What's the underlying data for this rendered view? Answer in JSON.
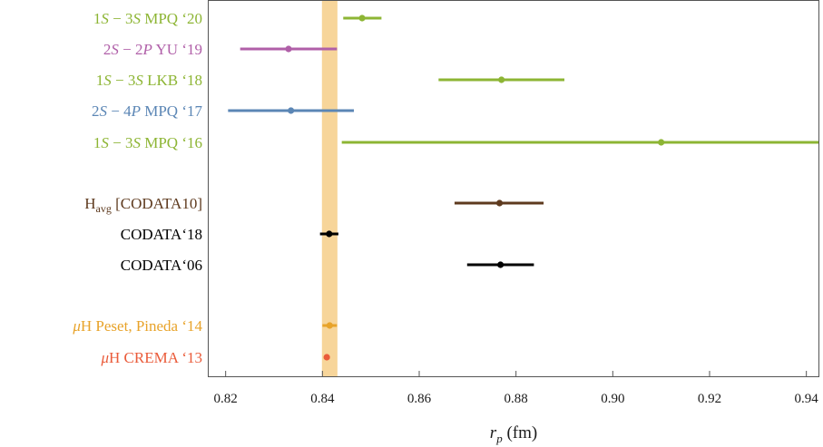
{
  "chart_data": {
    "type": "scatter",
    "title": "",
    "xlabel": "r_p (fm)",
    "xlim": [
      0.8165,
      0.9425
    ],
    "xticks": [
      "0.82",
      "0.84",
      "0.86",
      "0.88",
      "0.90",
      "0.92",
      "0.94"
    ],
    "tick_values": [
      0.82,
      0.84,
      0.86,
      0.88,
      0.9,
      0.92,
      0.94
    ],
    "band": {
      "low": 0.8399,
      "high": 0.8431,
      "color": "#f7d59a"
    },
    "points": [
      {
        "label": "1S − 3S MPQ ‘20",
        "value": 0.8482,
        "low": 0.8443,
        "high": 0.8522,
        "color": "#8db534"
      },
      {
        "label": "2S − 2P YU ‘19",
        "value": 0.833,
        "low": 0.823,
        "high": 0.843,
        "color": "#b05fa8"
      },
      {
        "label": "1S − 3S LKB ‘18",
        "value": 0.877,
        "low": 0.864,
        "high": 0.89,
        "color": "#8db534"
      },
      {
        "label": "2S − 4P MPQ ‘17",
        "value": 0.8335,
        "low": 0.8205,
        "high": 0.8465,
        "color": "#5b86b5"
      },
      {
        "label": "1S − 3S MPQ ‘16",
        "value": 0.91,
        "low": 0.844,
        "high": 0.9425,
        "color": "#8db534"
      },
      {
        "label": "H_avg [CODATA10]",
        "value": 0.8766,
        "low": 0.8673,
        "high": 0.8857,
        "color": "#5e3a1e"
      },
      {
        "label": "CODATA‘18",
        "value": 0.8414,
        "low": 0.8395,
        "high": 0.8433,
        "color": "#000000"
      },
      {
        "label": "CODATA‘06",
        "value": 0.8768,
        "low": 0.8699,
        "high": 0.8837,
        "color": "#000000"
      },
      {
        "label": "μH Peset, Pineda ‘14",
        "value": 0.8415,
        "low": 0.84,
        "high": 0.843,
        "color": "#e8a32a"
      },
      {
        "label": "μH CREMA ‘13",
        "value": 0.8409,
        "low": 0.8405,
        "high": 0.8413,
        "color": "#ea5b3a"
      }
    ]
  }
}
